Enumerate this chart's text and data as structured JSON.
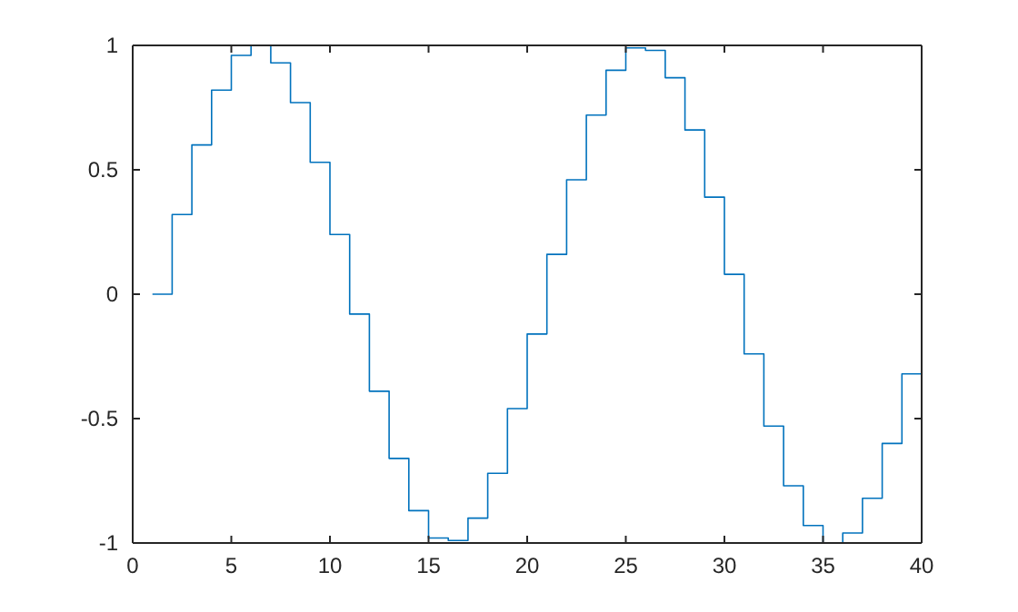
{
  "chart_data": {
    "type": "step",
    "x": [
      1,
      2,
      3,
      4,
      5,
      6,
      7,
      8,
      9,
      10,
      11,
      12,
      13,
      14,
      15,
      16,
      17,
      18,
      19,
      20,
      21,
      22,
      23,
      24,
      25,
      26,
      27,
      28,
      29,
      30,
      31,
      32,
      33,
      34,
      35,
      36,
      37,
      38,
      39,
      40
    ],
    "series": [
      {
        "color": "#0072bd",
        "values": [
          0,
          0.32,
          0.6,
          0.82,
          0.96,
          1,
          0.93,
          0.77,
          0.53,
          0.24,
          -0.08,
          -0.39,
          -0.66,
          -0.87,
          -0.98,
          -0.99,
          -0.9,
          -0.72,
          -0.46,
          -0.16,
          0.16,
          0.46,
          0.72,
          0.9,
          0.99,
          0.98,
          0.87,
          0.66,
          0.39,
          0.08,
          -0.24,
          -0.53,
          -0.77,
          -0.93,
          -1,
          -0.96,
          -0.82,
          -0.6,
          -0.32,
          0
        ]
      }
    ],
    "xlim": [
      0,
      40
    ],
    "xticks": [
      0,
      5,
      10,
      15,
      20,
      25,
      30,
      35,
      40
    ],
    "ylim": [
      -1,
      1
    ],
    "yticks": [
      -1,
      -0.5,
      0,
      0.5,
      1
    ],
    "grid": false
  }
}
